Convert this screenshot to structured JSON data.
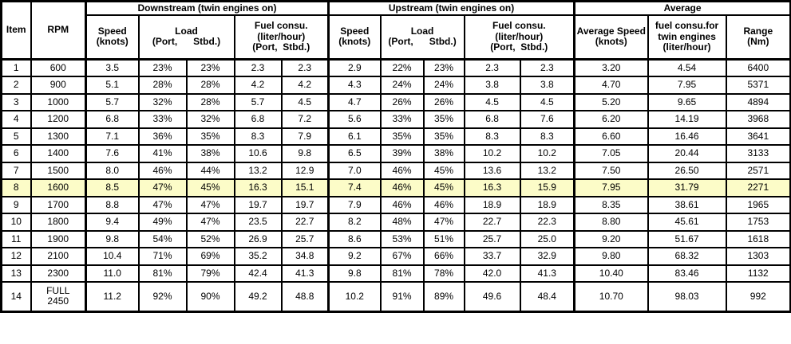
{
  "colors": {
    "highlight_row": "#FCFCC8",
    "border": "#000000",
    "text": "#000000",
    "background": "#FFFFFF"
  },
  "table": {
    "headers": {
      "item": "Item",
      "rpm": "RPM",
      "downstream_group": "Downstream (twin engines on)",
      "upstream_group": "Upstream (twin engines on)",
      "average_group": "Average",
      "speed_l1": "Speed",
      "speed_l2": "(knots)",
      "load_l1": "Load",
      "load_l2": "(Port,      Stbd.)",
      "fuel_l1": "Fuel consu.",
      "fuel_l2": "(liter/hour)",
      "fuel_l3": "(Port,  Stbd.)",
      "avg_speed_l1": "Average Speed",
      "avg_speed_l2": "(knots)",
      "avg_fuel_l1": "fuel consu.for",
      "avg_fuel_l2": "twin engines",
      "avg_fuel_l3": "(liter/hour)",
      "range_l1": "Range",
      "range_l2": "(Nm)"
    }
  },
  "chart_data": {
    "type": "table",
    "column_keys": [
      "item",
      "rpm",
      "ds_speed",
      "ds_load_port",
      "ds_load_stbd",
      "ds_fuel_port",
      "ds_fuel_stbd",
      "us_speed",
      "us_load_port",
      "us_load_stbd",
      "us_fuel_port",
      "us_fuel_stbd",
      "avg_speed",
      "avg_fuel_twin",
      "range"
    ],
    "columns": [
      "Item",
      "RPM",
      "Downstream Speed (knots)",
      "Downstream Load Port",
      "Downstream Load Stbd.",
      "Downstream Fuel consu. Port (liter/hour)",
      "Downstream Fuel consu. Stbd. (liter/hour)",
      "Upstream Speed (knots)",
      "Upstream Load Port",
      "Upstream Load Stbd.",
      "Upstream Fuel consu. Port (liter/hour)",
      "Upstream Fuel consu. Stbd. (liter/hour)",
      "Average Speed (knots)",
      "fuel consu.for twin engines (liter/hour)",
      "Range (Nm)"
    ],
    "highlighted_row_index": 7,
    "rows": [
      [
        "1",
        "600",
        "3.5",
        "23%",
        "23%",
        "2.3",
        "2.3",
        "2.9",
        "22%",
        "23%",
        "2.3",
        "2.3",
        "3.20",
        "4.54",
        "6400"
      ],
      [
        "2",
        "900",
        "5.1",
        "28%",
        "28%",
        "4.2",
        "4.2",
        "4.3",
        "24%",
        "24%",
        "3.8",
        "3.8",
        "4.70",
        "7.95",
        "5371"
      ],
      [
        "3",
        "1000",
        "5.7",
        "32%",
        "28%",
        "5.7",
        "4.5",
        "4.7",
        "26%",
        "26%",
        "4.5",
        "4.5",
        "5.20",
        "9.65",
        "4894"
      ],
      [
        "4",
        "1200",
        "6.8",
        "33%",
        "32%",
        "6.8",
        "7.2",
        "5.6",
        "33%",
        "35%",
        "6.8",
        "7.6",
        "6.20",
        "14.19",
        "3968"
      ],
      [
        "5",
        "1300",
        "7.1",
        "36%",
        "35%",
        "8.3",
        "7.9",
        "6.1",
        "35%",
        "35%",
        "8.3",
        "8.3",
        "6.60",
        "16.46",
        "3641"
      ],
      [
        "6",
        "1400",
        "7.6",
        "41%",
        "38%",
        "10.6",
        "9.8",
        "6.5",
        "39%",
        "38%",
        "10.2",
        "10.2",
        "7.05",
        "20.44",
        "3133"
      ],
      [
        "7",
        "1500",
        "8.0",
        "46%",
        "44%",
        "13.2",
        "12.9",
        "7.0",
        "46%",
        "45%",
        "13.6",
        "13.2",
        "7.50",
        "26.50",
        "2571"
      ],
      [
        "8",
        "1600",
        "8.5",
        "47%",
        "45%",
        "16.3",
        "15.1",
        "7.4",
        "46%",
        "45%",
        "16.3",
        "15.9",
        "7.95",
        "31.79",
        "2271"
      ],
      [
        "9",
        "1700",
        "8.8",
        "47%",
        "47%",
        "19.7",
        "19.7",
        "7.9",
        "46%",
        "46%",
        "18.9",
        "18.9",
        "8.35",
        "38.61",
        "1965"
      ],
      [
        "10",
        "1800",
        "9.4",
        "49%",
        "47%",
        "23.5",
        "22.7",
        "8.2",
        "48%",
        "47%",
        "22.7",
        "22.3",
        "8.80",
        "45.61",
        "1753"
      ],
      [
        "11",
        "1900",
        "9.8",
        "54%",
        "52%",
        "26.9",
        "25.7",
        "8.6",
        "53%",
        "51%",
        "25.7",
        "25.0",
        "9.20",
        "51.67",
        "1618"
      ],
      [
        "12",
        "2100",
        "10.4",
        "71%",
        "69%",
        "35.2",
        "34.8",
        "9.2",
        "67%",
        "66%",
        "33.7",
        "32.9",
        "9.80",
        "68.32",
        "1303"
      ],
      [
        "13",
        "2300",
        "11.0",
        "81%",
        "79%",
        "42.4",
        "41.3",
        "9.8",
        "81%",
        "78%",
        "42.0",
        "41.3",
        "10.40",
        "83.46",
        "1132"
      ],
      [
        "14",
        "FULL\n2450",
        "11.2",
        "92%",
        "90%",
        "49.2",
        "48.8",
        "10.2",
        "91%",
        "89%",
        "49.6",
        "48.4",
        "10.70",
        "98.03",
        "992"
      ]
    ]
  }
}
